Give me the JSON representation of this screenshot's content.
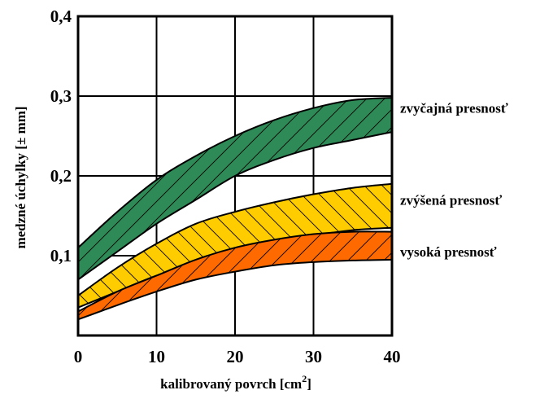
{
  "chart_data": {
    "type": "area",
    "xlabel": "kalibrovaný povrch [cm",
    "xlabel_sup": "2",
    "xlabel_end": "]",
    "ylabel": "medzné úchylky [± mm]",
    "xlim": [
      0,
      40
    ],
    "ylim": [
      0,
      0.4
    ],
    "x_ticks": [
      "0",
      "10",
      "20",
      "30",
      "40"
    ],
    "y_ticks": [
      "0,1",
      "0,2",
      "0,3",
      "0,4"
    ],
    "grid": true,
    "x": [
      0,
      5,
      10,
      15,
      20,
      25,
      30,
      35,
      40
    ],
    "series": [
      {
        "name": "zvyčajná presnosť",
        "color": "#2e8b57",
        "upper": [
          0.11,
          0.155,
          0.195,
          0.225,
          0.25,
          0.27,
          0.285,
          0.295,
          0.298
        ],
        "lower": [
          0.07,
          0.105,
          0.14,
          0.17,
          0.2,
          0.22,
          0.235,
          0.245,
          0.255
        ]
      },
      {
        "name": "zvýšená presnosť",
        "color": "#ffcc00",
        "upper": [
          0.05,
          0.085,
          0.115,
          0.14,
          0.155,
          0.167,
          0.177,
          0.185,
          0.19
        ],
        "lower": [
          0.035,
          0.055,
          0.075,
          0.09,
          0.105,
          0.115,
          0.125,
          0.132,
          0.135
        ]
      },
      {
        "name": "vysoká presnosť",
        "color": "#ff6a00",
        "upper": [
          0.03,
          0.055,
          0.075,
          0.095,
          0.11,
          0.12,
          0.127,
          0.13,
          0.13
        ],
        "lower": [
          0.02,
          0.038,
          0.055,
          0.07,
          0.08,
          0.088,
          0.092,
          0.094,
          0.095
        ]
      }
    ]
  }
}
